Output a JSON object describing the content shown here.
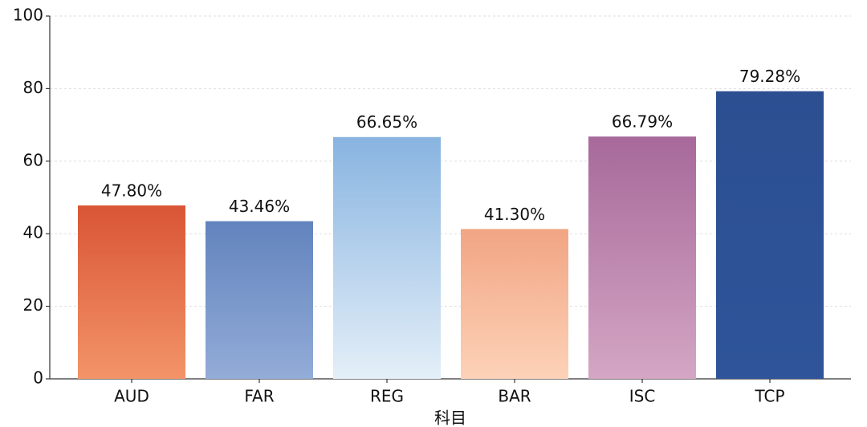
{
  "chart_data": {
    "type": "bar",
    "x_label": "科目",
    "categories": [
      "AUD",
      "FAR",
      "REG",
      "BAR",
      "ISC",
      "TCP"
    ],
    "values": [
      47.8,
      43.46,
      66.65,
      41.3,
      66.79,
      79.28
    ],
    "value_labels": [
      "47.80%",
      "43.46%",
      "66.65%",
      "41.30%",
      "66.79%",
      "79.28%"
    ],
    "colors": [
      "#d95535",
      "#6283bd",
      "#88b4e0",
      "#f1a583",
      "#a7699a",
      "#2b4f91"
    ],
    "bottom_colors": [
      "#f39468",
      "#93acd8",
      "#e4eff8",
      "#fdd2b8",
      "#d4a6c4",
      "#2f5499"
    ],
    "ylim": [
      0,
      100
    ],
    "yticks": [
      0,
      20,
      40,
      60,
      80,
      100
    ],
    "grid": true
  }
}
